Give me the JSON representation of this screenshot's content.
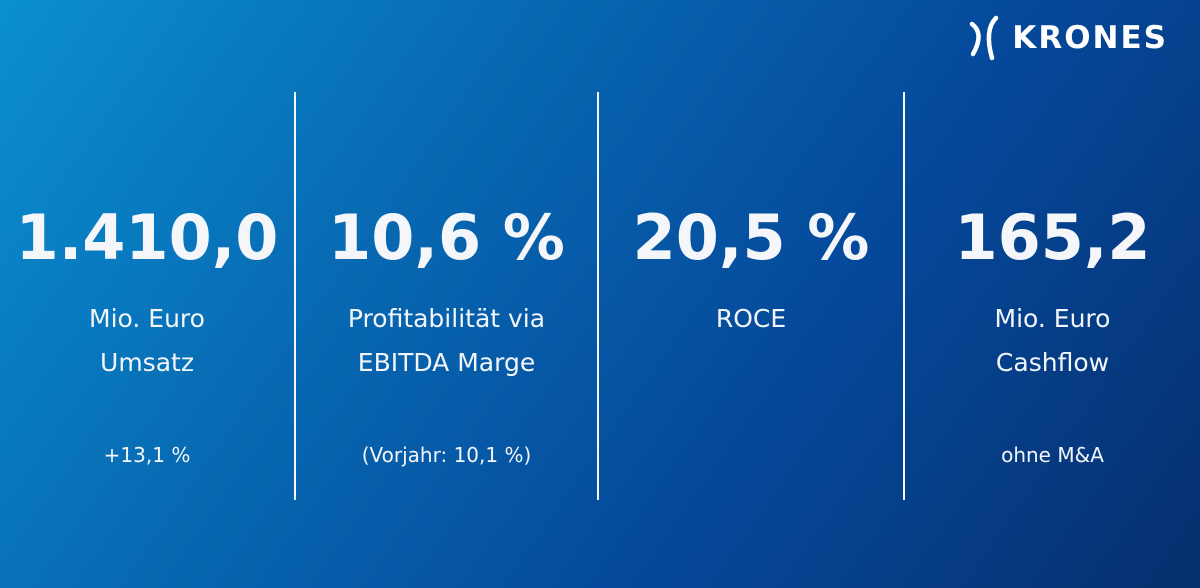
{
  "brand": {
    "logo_text": "KRONES"
  },
  "kpis": [
    {
      "value": "1.410,0",
      "label_line1": "Mio. Euro",
      "label_line2": "Umsatz",
      "note": "+13,1 %"
    },
    {
      "value": "10,6 %",
      "label_line1": "Profitabilität via",
      "label_line2": "EBITDA Marge",
      "note": "(Vorjahr: 10,1 %)"
    },
    {
      "value": "20,5 %",
      "label_line1": "ROCE",
      "label_line2": "",
      "note": ""
    },
    {
      "value": "165,2",
      "label_line1": "Mio. Euro",
      "label_line2": "Cashflow",
      "note": "ohne M&A"
    }
  ],
  "colors": {
    "background_start": "#0a8fd0",
    "background_end": "#06306e",
    "text": "#ffffff"
  }
}
